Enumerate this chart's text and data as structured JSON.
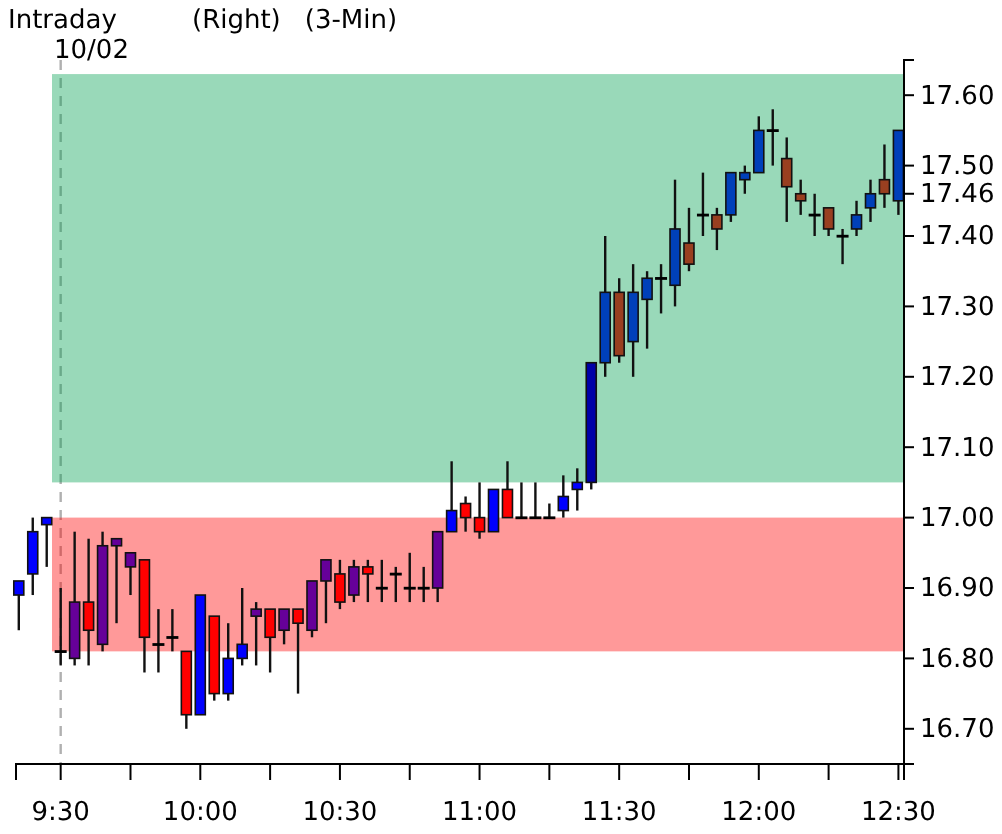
{
  "chart_data": {
    "type": "candlestick",
    "title": "Intraday",
    "subtitle": "10/02",
    "annotations": [
      "(Right)",
      "(3-Min)"
    ],
    "x": [
      9.35,
      9.4,
      9.45,
      9.5,
      9.55,
      9.6,
      9.65,
      9.7,
      9.75,
      9.8,
      9.85,
      9.9,
      9.95,
      10,
      10.05,
      10.1,
      10.15,
      10.2,
      10.25,
      10.3,
      10.35,
      10.4,
      10.45,
      10.5,
      10.55,
      10.6,
      10.65,
      10.7,
      10.75,
      10.8,
      10.85,
      10.9,
      10.95,
      11,
      11.05,
      11.1,
      11.15,
      11.2,
      11.25,
      11.3,
      11.35,
      11.4,
      11.45,
      11.5,
      11.55,
      11.6,
      11.65,
      11.7,
      11.75,
      11.8,
      11.85,
      11.9,
      11.95,
      12,
      12.05,
      12.1,
      12.15,
      12.2,
      12.25,
      12.3,
      12.35,
      12.4,
      12.45,
      12.5
    ],
    "ohlc": [
      [
        16.89,
        16.91,
        16.84,
        16.91
      ],
      [
        16.92,
        17.0,
        16.89,
        16.98
      ],
      [
        16.99,
        17.0,
        16.93,
        17.0
      ],
      [
        16.81,
        16.9,
        16.79,
        16.81
      ],
      [
        16.8,
        16.98,
        16.79,
        16.88
      ],
      [
        16.88,
        16.97,
        16.79,
        16.84
      ],
      [
        16.82,
        16.98,
        16.81,
        16.96
      ],
      [
        16.96,
        16.97,
        16.85,
        16.97
      ],
      [
        16.93,
        16.95,
        16.89,
        16.95
      ],
      [
        16.94,
        16.94,
        16.78,
        16.83
      ],
      [
        16.82,
        16.87,
        16.78,
        16.82
      ],
      [
        16.83,
        16.87,
        16.81,
        16.83
      ],
      [
        16.81,
        16.81,
        16.7,
        16.72
      ],
      [
        16.72,
        16.89,
        16.72,
        16.89
      ],
      [
        16.86,
        16.86,
        16.74,
        16.75
      ],
      [
        16.75,
        16.85,
        16.74,
        16.8
      ],
      [
        16.8,
        16.9,
        16.79,
        16.82
      ],
      [
        16.86,
        16.88,
        16.79,
        16.87
      ],
      [
        16.87,
        16.87,
        16.78,
        16.83
      ],
      [
        16.84,
        16.87,
        16.82,
        16.87
      ],
      [
        16.87,
        16.87,
        16.75,
        16.85
      ],
      [
        16.84,
        16.91,
        16.83,
        16.91
      ],
      [
        16.91,
        16.94,
        16.85,
        16.94
      ],
      [
        16.92,
        16.94,
        16.87,
        16.88
      ],
      [
        16.89,
        16.94,
        16.88,
        16.93
      ],
      [
        16.93,
        16.94,
        16.88,
        16.92
      ],
      [
        16.9,
        16.94,
        16.88,
        16.9
      ],
      [
        16.92,
        16.93,
        16.88,
        16.92
      ],
      [
        16.9,
        16.95,
        16.88,
        16.9
      ],
      [
        16.9,
        16.93,
        16.88,
        16.9
      ],
      [
        16.9,
        16.98,
        16.88,
        16.98
      ],
      [
        16.98,
        17.08,
        16.98,
        17.01
      ],
      [
        17.02,
        17.03,
        16.98,
        17.0
      ],
      [
        17.0,
        17.05,
        16.97,
        16.98
      ],
      [
        16.98,
        17.04,
        16.98,
        17.04
      ],
      [
        17.04,
        17.08,
        17.0,
        17.0
      ],
      [
        17.0,
        17.05,
        17.0,
        17.0
      ],
      [
        17.0,
        17.05,
        17.0,
        17.0
      ],
      [
        17.0,
        17.02,
        17.0,
        17.0
      ],
      [
        17.01,
        17.06,
        17.0,
        17.03
      ],
      [
        17.04,
        17.07,
        17.01,
        17.05
      ],
      [
        17.05,
        17.22,
        17.04,
        17.22
      ],
      [
        17.22,
        17.4,
        17.2,
        17.32
      ],
      [
        17.32,
        17.34,
        17.22,
        17.23
      ],
      [
        17.25,
        17.36,
        17.2,
        17.32
      ],
      [
        17.31,
        17.35,
        17.24,
        17.34
      ],
      [
        17.34,
        17.36,
        17.29,
        17.34
      ],
      [
        17.33,
        17.48,
        17.3,
        17.41
      ],
      [
        17.39,
        17.44,
        17.35,
        17.36
      ],
      [
        17.43,
        17.49,
        17.4,
        17.43
      ],
      [
        17.43,
        17.44,
        17.38,
        17.41
      ],
      [
        17.43,
        17.49,
        17.42,
        17.49
      ],
      [
        17.48,
        17.5,
        17.46,
        17.49
      ],
      [
        17.49,
        17.57,
        17.49,
        17.55
      ],
      [
        17.55,
        17.58,
        17.5,
        17.55
      ],
      [
        17.51,
        17.54,
        17.42,
        17.47
      ],
      [
        17.46,
        17.48,
        17.43,
        17.45
      ],
      [
        17.43,
        17.46,
        17.4,
        17.43
      ],
      [
        17.44,
        17.44,
        17.4,
        17.41
      ],
      [
        17.4,
        17.41,
        17.36,
        17.4
      ],
      [
        17.41,
        17.45,
        17.4,
        17.43
      ],
      [
        17.44,
        17.48,
        17.42,
        17.46
      ],
      [
        17.48,
        17.53,
        17.44,
        17.46
      ],
      [
        17.45,
        17.55,
        17.43,
        17.55
      ]
    ],
    "colors": [
      "#0000ff",
      "#0000ff",
      "#0000ff",
      "#000000",
      "#660099",
      "#ff0000",
      "#660099",
      "#660099",
      "#660099",
      "#ff0000",
      "#000000",
      "#000000",
      "#ff0000",
      "#0000ff",
      "#ff0000",
      "#0000ff",
      "#0000ff",
      "#660099",
      "#ff0000",
      "#660099",
      "#ff0000",
      "#660099",
      "#660099",
      "#ff0000",
      "#660099",
      "#ff0000",
      "#000000",
      "#000000",
      "#000000",
      "#000000",
      "#660099",
      "#0000ff",
      "#ff0000",
      "#ff0000",
      "#0000ff",
      "#ff0000",
      "#000000",
      "#000000",
      "#000000",
      "#0000ff",
      "#0000ff",
      "#0000a8",
      "#0040b9",
      "#993f20",
      "#0040b9",
      "#0040b9",
      "#000000",
      "#0040b9",
      "#993f20",
      "#000000",
      "#993f20",
      "#0040b9",
      "#0040b9",
      "#0040b9",
      "#000000",
      "#993f20",
      "#993f20",
      "#000000",
      "#993f20",
      "#000000",
      "#0040b9",
      "#0040b9",
      "#993f20",
      "#0040b9"
    ],
    "xlim": [
      9.34,
      12.52
    ],
    "xticks": [
      {
        "value": 9.5,
        "label": "9:30"
      },
      {
        "value": 9.75,
        "label": null
      },
      {
        "value": 10,
        "label": "10:00"
      },
      {
        "value": 10.25,
        "label": null
      },
      {
        "value": 10.5,
        "label": "10:30"
      },
      {
        "value": 10.75,
        "label": null
      },
      {
        "value": 11,
        "label": "11:00"
      },
      {
        "value": 11.25,
        "label": null
      },
      {
        "value": 11.5,
        "label": "11:30"
      },
      {
        "value": 11.75,
        "label": null
      },
      {
        "value": 12,
        "label": "12:00"
      },
      {
        "value": 12.25,
        "label": null
      },
      {
        "value": 12.5,
        "label": "12:30"
      }
    ],
    "ylim": [
      16.65,
      17.65
    ],
    "yticks": [
      {
        "value": 16.7,
        "label": "16.70"
      },
      {
        "value": 16.8,
        "label": "16.80"
      },
      {
        "value": 16.9,
        "label": "16.90"
      },
      {
        "value": 17.0,
        "label": "17.00"
      },
      {
        "value": 17.1,
        "label": "17.10"
      },
      {
        "value": 17.2,
        "label": "17.20"
      },
      {
        "value": 17.3,
        "label": "17.30"
      },
      {
        "value": 17.4,
        "label": "17.40"
      },
      {
        "value": 17.46,
        "label": "17.46"
      },
      {
        "value": 17.5,
        "label": "17.50"
      },
      {
        "value": 17.6,
        "label": "17.60"
      }
    ],
    "ref_lines": [
      {
        "axis": "x",
        "value": 9.5,
        "color": "#b0b0b0",
        "line_style": "dashed"
      }
    ],
    "bands": [
      {
        "axis": "y",
        "from": 16.81,
        "to": 17.0,
        "color": "#ff0000"
      },
      {
        "axis": "y",
        "from": 17.05,
        "to": 17.63,
        "color": "#00a050"
      }
    ],
    "grid": false
  }
}
